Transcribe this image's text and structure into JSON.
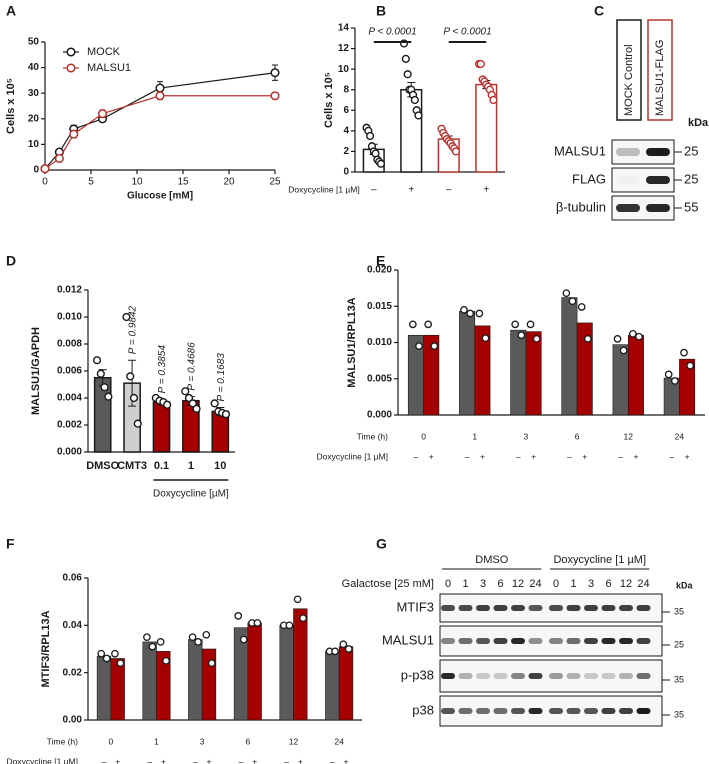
{
  "chart_data": [
    {
      "type": "line",
      "label": "A",
      "xlabel": "Glucose [mM]",
      "ylabel": "Cells x 10⁵",
      "x": [
        0,
        1.5625,
        3.125,
        6.25,
        12.5,
        25
      ],
      "xlim": [
        0,
        25
      ],
      "xticks": [
        0,
        5,
        10,
        15,
        20,
        25
      ],
      "ylim": [
        0,
        50
      ],
      "yticks": [
        0,
        10,
        20,
        30,
        40,
        50
      ],
      "legend": "upper left",
      "series": [
        {
          "name": "MOCK",
          "color": "#1a1a1a",
          "values": [
            0.5,
            7,
            16,
            20,
            32,
            38
          ],
          "errors": [
            0.5,
            1,
            1.5,
            1,
            2.5,
            3
          ]
        },
        {
          "name": "MALSU1",
          "color": "#b5332e",
          "values": [
            0.5,
            4.5,
            14,
            22,
            29,
            29
          ],
          "errors": [
            0.3,
            1,
            1.5,
            1.5,
            1.5,
            1
          ]
        }
      ]
    },
    {
      "type": "bar",
      "label": "B",
      "ylabel": "Cells x 10⁵",
      "xlabel": "Doxycycline [1 µM]",
      "categories": [
        "–",
        "+",
        "–",
        "+"
      ],
      "values": [
        2.2,
        8.0,
        3.2,
        8.5
      ],
      "errors": [
        0.5,
        0.7,
        0.3,
        0.4
      ],
      "colors": [
        "#ffffff",
        "#ffffff",
        "#ffffff",
        "#ffffff"
      ],
      "edgecolors": [
        "#1a1a1a",
        "#1a1a1a",
        "#b5332e",
        "#b5332e"
      ],
      "points": [
        [
          4.3,
          4.0,
          3.5,
          2.5,
          2.0,
          1.8,
          1.2,
          1.0,
          0.8
        ],
        [
          12.5,
          11,
          9.5,
          8,
          8,
          7.5,
          7,
          6,
          5.5
        ],
        [
          4.2,
          3.8,
          3.5,
          3.2,
          3.0,
          2.8,
          2.5,
          2.3,
          2.0
        ],
        [
          10.5,
          10.5,
          9,
          8.8,
          8.5,
          8.3,
          8,
          7.5,
          7
        ]
      ],
      "ylim": [
        0,
        14
      ],
      "yticks": [
        0,
        2,
        4,
        6,
        8,
        10,
        12,
        14
      ],
      "annotations": [
        "P < 0.0001",
        "P < 0.0001"
      ]
    },
    {
      "type": "bar",
      "label": "D",
      "ylabel": "MALSU1/GAPDH",
      "group_label": "Doxycycline [µM]",
      "categories": [
        "DMSO",
        "CMT3",
        "0.1",
        "1",
        "10"
      ],
      "values": [
        0.0055,
        0.0051,
        0.0037,
        0.0038,
        0.003
      ],
      "errors": [
        0.0006,
        0.0017,
        0.0002,
        0.0003,
        0.0003
      ],
      "colors": [
        "#595959",
        "#cfcfcf",
        "#a50000",
        "#a50000",
        "#a50000"
      ],
      "points": [
        [
          0.0068,
          0.0058,
          0.0048,
          0.0041
        ],
        [
          0.01,
          0.0056,
          0.004,
          0.0021
        ],
        [
          0.004,
          0.0038,
          0.0037,
          0.0035
        ],
        [
          0.0045,
          0.004,
          0.0036,
          0.0032
        ],
        [
          0.0036,
          0.003,
          0.0029,
          0.0028
        ]
      ],
      "ylim": [
        0,
        0.012
      ],
      "yticks": [
        {
          "value": 0,
          "label": "0.000"
        },
        {
          "value": 0.002,
          "label": "0.002"
        },
        {
          "value": 0.004,
          "label": "0.004"
        },
        {
          "value": 0.006,
          "label": "0.006"
        },
        {
          "value": 0.008,
          "label": "0.008"
        },
        {
          "value": 0.01,
          "label": "0.010"
        },
        {
          "value": 0.012,
          "label": "0.012"
        }
      ],
      "annotations": [
        "P = 0.9842",
        "P = 0.3854",
        "P = 0.4686",
        "P = 0.1683"
      ]
    },
    {
      "type": "bar",
      "label": "E",
      "ylabel": "MALSU1/RPL13A",
      "row_labels": [
        "Time (h)",
        "Doxycycline [1 µM]"
      ],
      "categories": [
        "0",
        "1",
        "3",
        "6",
        "12",
        "24"
      ],
      "series": [
        {
          "name": "–",
          "color": "#5a5a5a",
          "values": [
            0.011,
            0.0143,
            0.0117,
            0.0162,
            0.0097,
            0.0051
          ],
          "points": [
            [
              0.0125,
              0.0095
            ],
            [
              0.0145,
              0.014
            ],
            [
              0.0125,
              0.011
            ],
            [
              0.0168,
              0.0157
            ],
            [
              0.0105,
              0.0089
            ],
            [
              0.0056,
              0.0047
            ]
          ]
        },
        {
          "name": "+",
          "color": "#a50000",
          "values": [
            0.011,
            0.0123,
            0.0115,
            0.0127,
            0.011,
            0.0077
          ],
          "points": [
            [
              0.0125,
              0.0095
            ],
            [
              0.014,
              0.0106
            ],
            [
              0.0125,
              0.0105
            ],
            [
              0.0149,
              0.0105
            ],
            [
              0.0112,
              0.0108
            ],
            [
              0.0086,
              0.0068
            ]
          ]
        }
      ],
      "ylim": [
        0,
        0.02
      ],
      "yticks": [
        {
          "value": 0,
          "label": "0.000"
        },
        {
          "value": 0.005,
          "label": "0.005"
        },
        {
          "value": 0.01,
          "label": "0.010"
        },
        {
          "value": 0.015,
          "label": "0.015"
        },
        {
          "value": 0.02,
          "label": "0.020"
        }
      ]
    },
    {
      "type": "bar",
      "label": "F",
      "ylabel": "MTIF3/RPL13A",
      "row_labels": [
        "Time (h)",
        "Doxycycline [1 µM]"
      ],
      "categories": [
        "0",
        "1",
        "3",
        "6",
        "12",
        "24"
      ],
      "series": [
        {
          "name": "–",
          "color": "#5a5a5a",
          "values": [
            0.027,
            0.033,
            0.034,
            0.039,
            0.04,
            0.029
          ],
          "points": [
            [
              0.028,
              0.026
            ],
            [
              0.035,
              0.031
            ],
            [
              0.035,
              0.033
            ],
            [
              0.044,
              0.034
            ],
            [
              0.04,
              0.04
            ],
            [
              0.029,
              0.029
            ]
          ]
        },
        {
          "name": "+",
          "color": "#a50000",
          "values": [
            0.026,
            0.029,
            0.03,
            0.041,
            0.047,
            0.031
          ],
          "points": [
            [
              0.028,
              0.024
            ],
            [
              0.033,
              0.025
            ],
            [
              0.036,
              0.024
            ],
            [
              0.041,
              0.041
            ],
            [
              0.051,
              0.043
            ],
            [
              0.032,
              0.03
            ]
          ]
        }
      ],
      "ylim": [
        0,
        0.06
      ],
      "yticks": [
        {
          "value": 0,
          "label": "0.00"
        },
        {
          "value": 0.02,
          "label": "0.02"
        },
        {
          "value": 0.04,
          "label": "0.04"
        },
        {
          "value": 0.06,
          "label": "0.06"
        }
      ]
    }
  ],
  "blot_c": {
    "label": "C",
    "lanes": [
      "MOCK Control",
      "MALSU1-FLAG"
    ],
    "unit": "kDa",
    "rows": [
      {
        "name": "MALSU1",
        "marker": "25"
      },
      {
        "name": "FLAG",
        "marker": "25"
      },
      {
        "name": "β-tubulin",
        "marker": "55"
      }
    ]
  },
  "blot_g": {
    "label": "G",
    "groups": [
      "DMSO",
      "Doxycycline [1 µM]"
    ],
    "row_title": "Galactose [25 mM]",
    "lanes": [
      "0",
      "1",
      "3",
      "6",
      "12",
      "24"
    ],
    "unit": "kDa",
    "rows": [
      {
        "name": "MTIF3",
        "marker": "35"
      },
      {
        "name": "MALSU1",
        "marker": "25"
      },
      {
        "name": "p-p38",
        "marker": "35"
      },
      {
        "name": "p38",
        "marker": "35"
      }
    ]
  }
}
